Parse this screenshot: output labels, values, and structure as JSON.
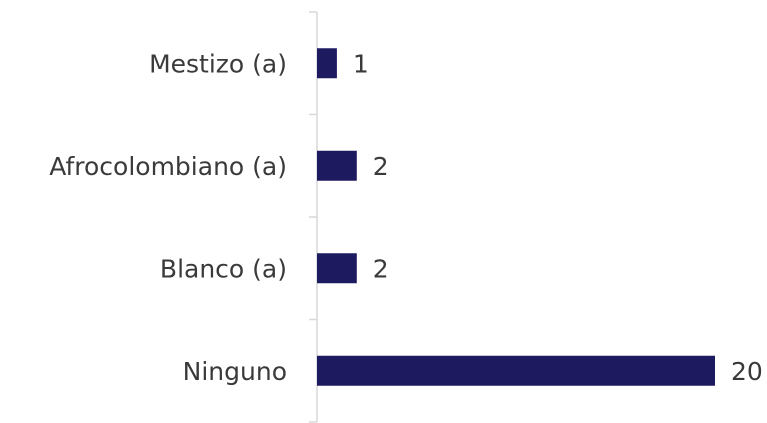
{
  "chart_data": {
    "type": "barh",
    "categories": [
      "Mestizo (a)",
      "Afrocolombiano (a)",
      "Blanco (a)",
      "Ninguno"
    ],
    "values": [
      1,
      2,
      2,
      20
    ],
    "color": "#1e1a60",
    "xlim": [
      0,
      20
    ]
  }
}
